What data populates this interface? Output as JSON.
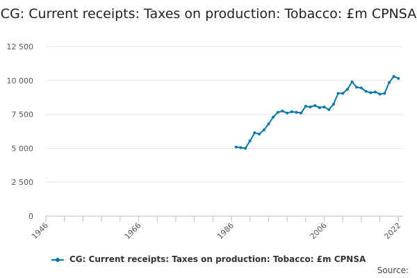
{
  "title": "CG: Current receipts: Taxes on production: Tobacco: £m CPNSA",
  "source_label": "Source:",
  "legend_label": "CG: Current receipts: Taxes on production: Tobacco: £m CPNSA",
  "colors": {
    "series": "#0076aa",
    "grid": "#e6e6e6",
    "axis": "#bbbbbb"
  },
  "chart_data": {
    "type": "line",
    "title": "CG: Current receipts: Taxes on production: Tobacco: £m CPNSA",
    "xlabel": "",
    "ylabel": "",
    "xlim": [
      1946,
      2023
    ],
    "ylim": [
      0,
      12500
    ],
    "x_ticks": [
      1946,
      1966,
      1986,
      2006,
      2022
    ],
    "x_tick_labels": [
      "1946",
      "1966",
      "1986",
      "2006",
      "2022"
    ],
    "y_ticks": [
      0,
      2500,
      5000,
      7500,
      10000,
      12500
    ],
    "y_tick_labels": [
      "0",
      "2 500",
      "5 000",
      "7 500",
      "10 000",
      "12 500"
    ],
    "grid": "horizontal",
    "legend": "bottom",
    "series": [
      {
        "name": "CG: Current receipts: Taxes on production: Tobacco: £m CPNSA",
        "x": [
          1987,
          1988,
          1989,
          1990,
          1991,
          1992,
          1993,
          1994,
          1995,
          1996,
          1997,
          1998,
          1999,
          2000,
          2001,
          2002,
          2003,
          2004,
          2005,
          2006,
          2007,
          2008,
          2009,
          2010,
          2011,
          2012,
          2013,
          2014,
          2015,
          2016,
          2017,
          2018,
          2019,
          2020,
          2021,
          2022
        ],
        "values": [
          5100,
          5050,
          5000,
          5550,
          6150,
          6050,
          6350,
          6800,
          7300,
          7650,
          7750,
          7600,
          7700,
          7650,
          7600,
          8100,
          8050,
          8150,
          8000,
          8050,
          7850,
          8250,
          9050,
          9050,
          9350,
          9900,
          9500,
          9450,
          9200,
          9100,
          9150,
          9000,
          9050,
          9850,
          10300,
          10150
        ]
      }
    ]
  }
}
